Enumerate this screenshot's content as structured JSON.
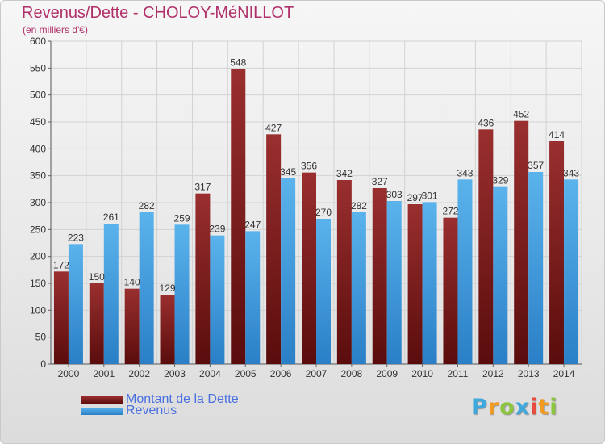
{
  "header": {
    "title": "Revenus/Dette - CHOLOY-MéNILLOT",
    "subtitle": "(en milliers d'€)"
  },
  "chart_data": {
    "type": "bar",
    "categories": [
      "2000",
      "2001",
      "2002",
      "2003",
      "2004",
      "2005",
      "2006",
      "2007",
      "2008",
      "2009",
      "2010",
      "2011",
      "2012",
      "2013",
      "2014"
    ],
    "series": [
      {
        "name": "Montant de la Dette",
        "color": "#7a1a1a",
        "values": [
          172,
          150,
          140,
          129,
          317,
          548,
          427,
          356,
          342,
          327,
          297,
          272,
          436,
          452,
          414
        ]
      },
      {
        "name": "Revenus",
        "color": "#3d9be0",
        "values": [
          223,
          261,
          282,
          259,
          239,
          247,
          345,
          270,
          282,
          303,
          301,
          343,
          329,
          357,
          343
        ]
      }
    ],
    "ylim": [
      0,
      600
    ],
    "yticks": [
      0,
      50,
      100,
      150,
      200,
      250,
      300,
      350,
      400,
      450,
      500,
      550,
      600
    ],
    "grid": true,
    "legend_position": "bottom-left"
  },
  "legend": {
    "debt_label": "Montant de la Dette",
    "revenue_label": "Revenus"
  },
  "logo": {
    "letters": [
      "P",
      "r",
      "o",
      "x",
      "i",
      "t",
      "i"
    ],
    "colors": [
      "#3fa9dd",
      "#f29a1f",
      "#8cc63f",
      "#3fa9dd",
      "#e84c3d",
      "#f29a1f",
      "#8cc63f"
    ]
  }
}
